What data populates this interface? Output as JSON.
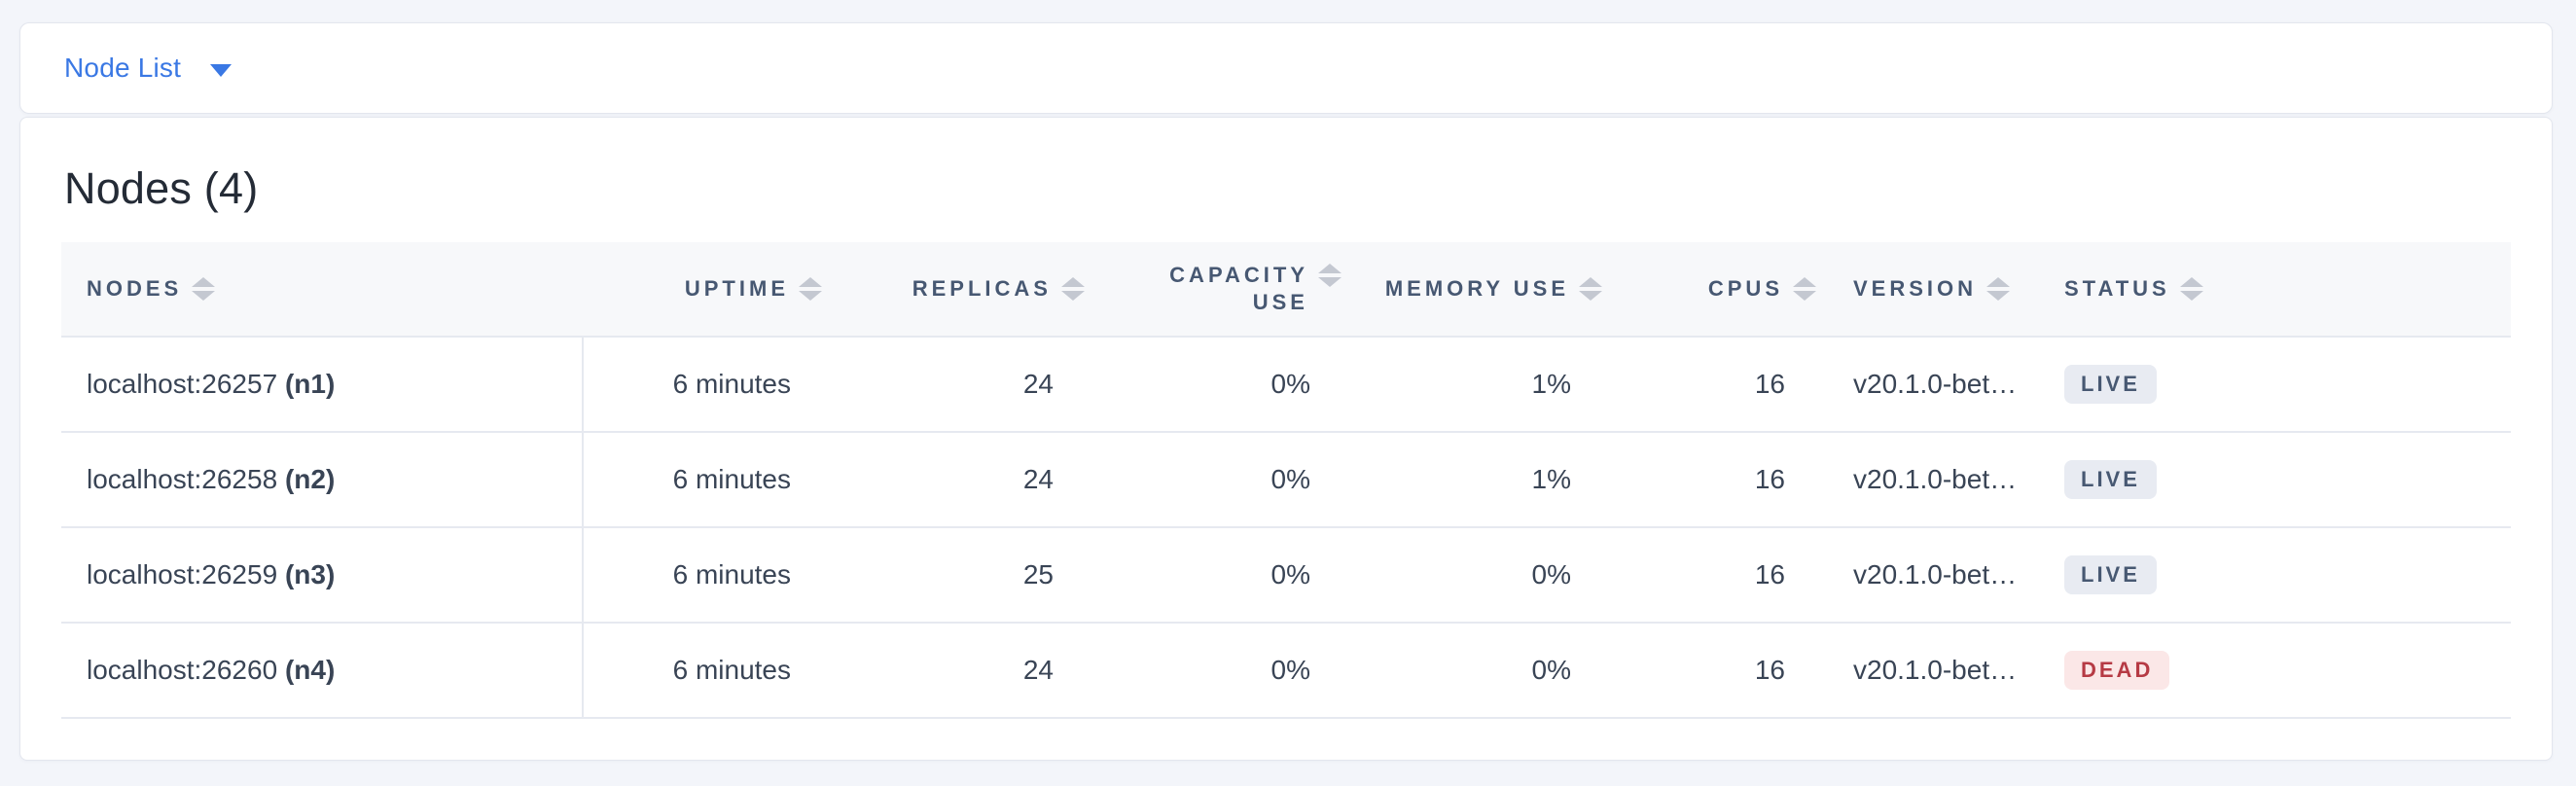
{
  "topbar": {
    "selector_label": "Node List"
  },
  "main": {
    "heading": "Nodes (4)"
  },
  "table": {
    "columns": [
      "NODES",
      "UPTIME",
      "REPLICAS",
      "CAPACITY USE",
      "MEMORY USE",
      "CPUS",
      "VERSION",
      "STATUS"
    ],
    "rows": [
      {
        "address": "localhost:26257",
        "id": "(n1)",
        "uptime": "6 minutes",
        "replicas": "24",
        "capacity_use": "0%",
        "memory_use": "1%",
        "cpus": "16",
        "version": "v20.1.0-bet…",
        "status": "LIVE"
      },
      {
        "address": "localhost:26258",
        "id": "(n2)",
        "uptime": "6 minutes",
        "replicas": "24",
        "capacity_use": "0%",
        "memory_use": "1%",
        "cpus": "16",
        "version": "v20.1.0-bet…",
        "status": "LIVE"
      },
      {
        "address": "localhost:26259",
        "id": "(n3)",
        "uptime": "6 minutes",
        "replicas": "25",
        "capacity_use": "0%",
        "memory_use": "0%",
        "cpus": "16",
        "version": "v20.1.0-bet…",
        "status": "LIVE"
      },
      {
        "address": "localhost:26260",
        "id": "(n4)",
        "uptime": "6 minutes",
        "replicas": "24",
        "capacity_use": "0%",
        "memory_use": "0%",
        "cpus": "16",
        "version": "v20.1.0-bet…",
        "status": "DEAD"
      }
    ]
  },
  "colors": {
    "page_bg": "#f3f5fa",
    "card_border": "#e3e6ee",
    "accent_blue": "#3a78e4",
    "heading_text": "#242b36",
    "header_bg": "#f7f8fa",
    "header_text": "#475872",
    "body_text": "#394455",
    "row_border": "#e6e9f0",
    "sort_icon": "#c4c8d1",
    "live_bg": "#e8ebf2",
    "live_text": "#475872",
    "dead_bg": "#fbe7e7",
    "dead_text": "#b63a44"
  }
}
